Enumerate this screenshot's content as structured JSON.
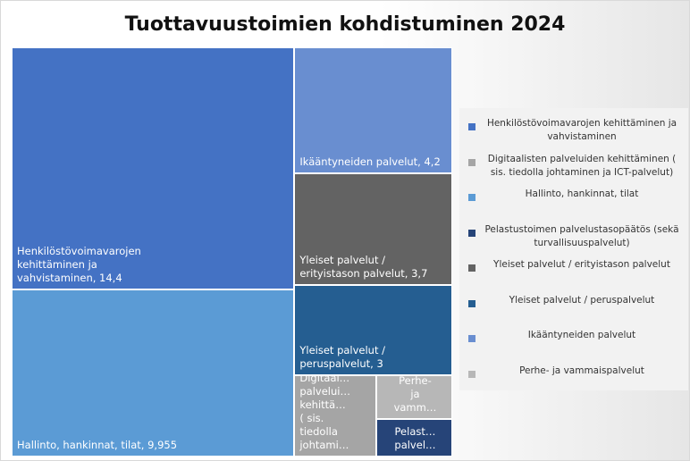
{
  "chart_data": {
    "type": "treemap",
    "title": "Tuottavuustoimien kohdistuminen 2024",
    "series": [
      {
        "name": "Henkilöstövoimavarojen kehittäminen ja vahvistaminen",
        "color": "#4472c4",
        "value": 14.4,
        "tile_label": [
          "Henkilöstövoimavarojen",
          "kehittäminen ja",
          "vahvistaminen, 14,4"
        ]
      },
      {
        "name": "Digitaalisten palveluiden kehittäminen ( sis. tiedolla johtaminen ja ICT-palvelut)",
        "color": "#a5a5a5",
        "value": 1.4,
        "tile_label": [
          "Digitaal…",
          "palvelui…",
          "kehittä…",
          "( sis.",
          "tiedolla",
          "johtami…"
        ]
      },
      {
        "name": "Hallinto, hankinnat, tilat",
        "color": "#5b9bd5",
        "value": 9.955,
        "tile_label": [
          "Hallinto, hankinnat, tilat, 9,955"
        ]
      },
      {
        "name": "Pelastustoimen palvelustasopäätös (sekä turvallisuuspalvelut)",
        "color": "#264478",
        "value": 0.6,
        "tile_label": [
          "Pelast…",
          "palvel…"
        ]
      },
      {
        "name": "Yleiset palvelut / erityistason palvelut",
        "color": "#636363",
        "value": 3.7,
        "tile_label": [
          "Yleiset palvelut /",
          "erityistason palvelut, 3,7"
        ]
      },
      {
        "name": "Yleiset palvelut / peruspalvelut",
        "color": "#255e91",
        "value": 3,
        "tile_label": [
          "Yleiset palvelut /",
          "peruspalvelut, 3"
        ]
      },
      {
        "name": "Ikääntyneiden palvelut",
        "color": "#698ed0",
        "value": 4.2,
        "tile_label": [
          "Ikääntyneiden palvelut, 4,2"
        ]
      },
      {
        "name": "Perhe- ja vammaispalvelut",
        "color": "#b7b7b7",
        "value": 0.7,
        "tile_label": [
          "Perhe-",
          "ja",
          "vamm…"
        ]
      }
    ],
    "legend": "right"
  }
}
